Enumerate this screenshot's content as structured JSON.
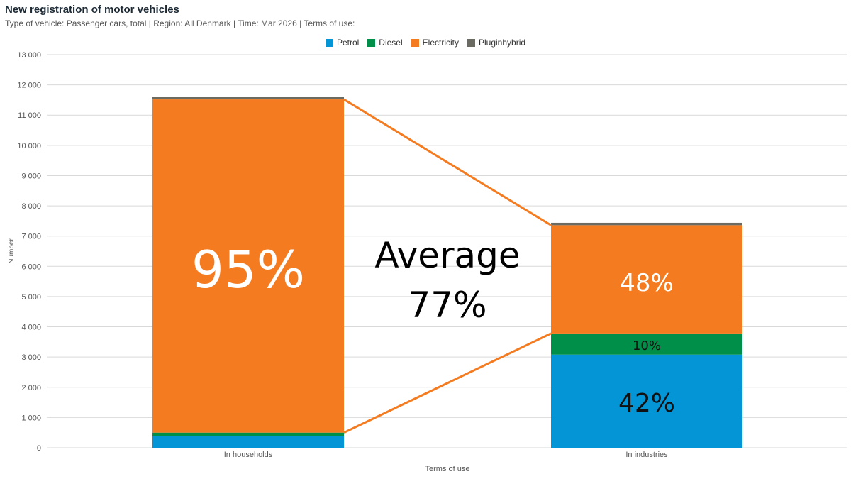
{
  "header": {
    "title": "New registration of motor vehicles",
    "subtitle": "Type of vehicle: Passenger cars, total | Region: All Denmark | Time: Mar 2026 | Terms of use:"
  },
  "colors": {
    "Petrol": "#0395d6",
    "Diesel": "#008f49",
    "Electricity": "#f47b20",
    "Pluginhybrid": "#6b6b61",
    "grid": "#d9d9d9",
    "connector": "#f47b20"
  },
  "chart_data": {
    "type": "bar",
    "stacked": true,
    "categories": [
      "In households",
      "In industries"
    ],
    "series": [
      {
        "name": "Petrol",
        "values": [
          380,
          3080
        ]
      },
      {
        "name": "Diesel",
        "values": [
          120,
          700
        ]
      },
      {
        "name": "Electricity",
        "values": [
          11020,
          3580
        ]
      },
      {
        "name": "Pluginhybrid",
        "values": [
          80,
          80
        ]
      }
    ],
    "ylim": [
      0,
      13000
    ],
    "yticks": [
      0,
      1000,
      2000,
      3000,
      4000,
      5000,
      6000,
      7000,
      8000,
      9000,
      10000,
      11000,
      12000,
      13000
    ],
    "ytick_labels": [
      "0",
      "1 000",
      "2 000",
      "3 000",
      "4 000",
      "5 000",
      "6 000",
      "7 000",
      "8 000",
      "9 000",
      "10 000",
      "11 000",
      "12 000",
      "13 000"
    ],
    "xlabel": "Terms of use",
    "ylabel": "Number",
    "legend_position": "top-center",
    "annotations": {
      "households_electricity": "95%",
      "industries_electricity": "48%",
      "industries_diesel": "10%",
      "industries_petrol": "42%",
      "average_line1": "Average",
      "average_line2": "77%"
    }
  }
}
